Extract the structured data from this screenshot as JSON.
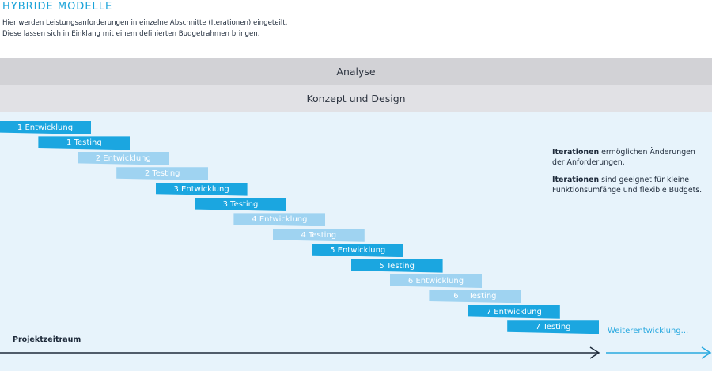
{
  "header": {
    "title": "HYBRIDE MODELLE",
    "subtitle_line1": "Hier werden Leistungsanforderungen in einzelne Abschnitte (Iterationen) eingeteilt.",
    "subtitle_line2": "Diese lassen sich in Einklang mit einem definierten Budgetrahmen bringen."
  },
  "phases": {
    "analyse": "Analyse",
    "konzept": "Konzept und Design"
  },
  "steps": [
    {
      "label": "1 Entwicklung",
      "style": "dark"
    },
    {
      "label": "1 Testing",
      "style": "dark"
    },
    {
      "label": "2 Entwicklung",
      "style": "light"
    },
    {
      "label": "2 Testing",
      "style": "light"
    },
    {
      "label": "3 Entwicklung",
      "style": "dark"
    },
    {
      "label": "3 Testing",
      "style": "dark"
    },
    {
      "label": "4 Entwicklung",
      "style": "light"
    },
    {
      "label": "4 Testing",
      "style": "light"
    },
    {
      "label": "5 Entwicklung",
      "style": "dark"
    },
    {
      "label": "5 Testing",
      "style": "dark"
    },
    {
      "label": "6 Entwicklung",
      "style": "light"
    },
    {
      "label": "6    Testing",
      "style": "light"
    },
    {
      "label": "7 Entwicklung",
      "style": "dark"
    },
    {
      "label": "7 Testing",
      "style": "dark"
    }
  ],
  "notes": {
    "note1_bold": "Iterationen",
    "note1_text": " ermöglichen Änderungen der Anforderungen.",
    "note2_bold": "Iterationen",
    "note2_text": " sind geeignet für kleine Funktionsumfänge und flexible Budgets."
  },
  "timeline": {
    "label": "Projektzeitraum",
    "continuation": "Weiterentwicklung..."
  },
  "colors": {
    "accent": "#1ba6e0",
    "accent_light": "#9fd3f1",
    "title": "#1aa3d9"
  }
}
